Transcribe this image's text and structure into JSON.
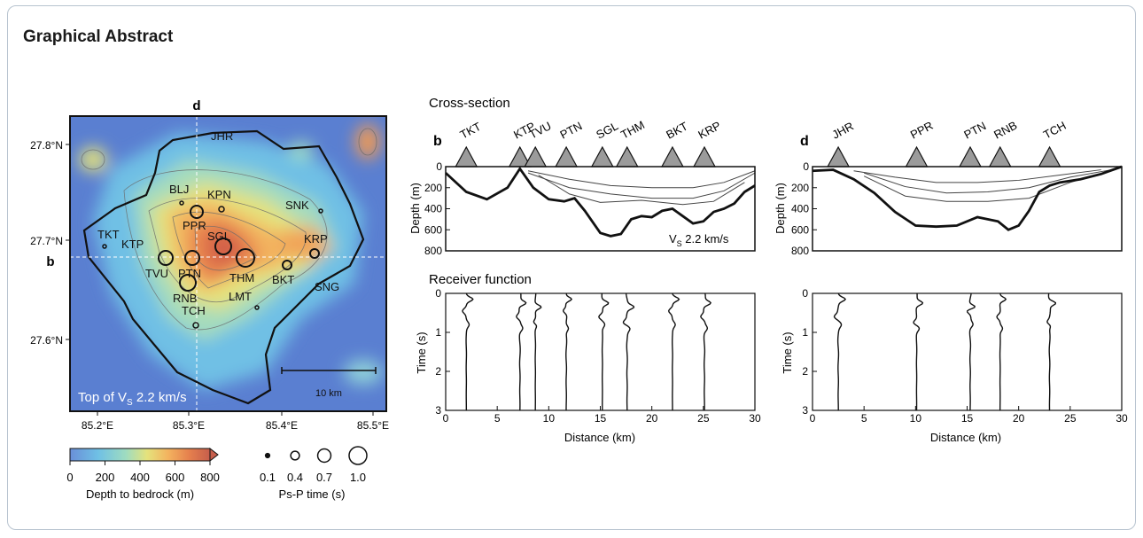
{
  "title": "Graphical Abstract",
  "map": {
    "panel_label": "d",
    "row_label": "b",
    "caption_main": "Top of V",
    "caption_sub": "S",
    "caption_rest": " 2.2 km/s",
    "scale_label": "10 km",
    "lat_labels": [
      "27.8°N",
      "27.7°N",
      "27.6°N"
    ],
    "lon_labels": [
      "85.2°E",
      "85.3°E",
      "85.4°E",
      "85.5°E"
    ],
    "stations": [
      "JHR",
      "BLJ",
      "KPN",
      "PPR",
      "SNK",
      "TKT",
      "KTP",
      "SGL",
      "KRP",
      "TVU",
      "PTN",
      "THM",
      "BKT",
      "SNG",
      "RNB",
      "LMT",
      "TCH"
    ]
  },
  "colorbar": {
    "ticks": [
      "0",
      "200",
      "400",
      "600",
      "800"
    ],
    "label": "Depth to bedrock (m)",
    "colors": [
      "#6a8fd8",
      "#6fbfe3",
      "#a9dcc0",
      "#e7e27a",
      "#f4b060",
      "#e9784a",
      "#c9503f"
    ]
  },
  "size_legend": {
    "values": [
      "0.1",
      "0.4",
      "0.7",
      "1.0"
    ],
    "label": "Ps-P time (s)"
  },
  "headings": {
    "cross_section": "Cross-section",
    "receiver_function": "Receiver function"
  },
  "cross_b": {
    "label": "b",
    "stations": [
      "TKT",
      "KTP",
      "TVU",
      "PTN",
      "SGL",
      "THM",
      "BKT",
      "KRP"
    ],
    "station_km": [
      2.0,
      7.2,
      8.7,
      11.7,
      15.2,
      17.6,
      22.0,
      25.1
    ],
    "ylabel": "Depth (m)",
    "yticks": [
      "0",
      "200",
      "400",
      "600",
      "800"
    ],
    "annot_main": "V",
    "annot_sub": "S",
    "annot_rest": " 2.2 km/s"
  },
  "cross_d": {
    "label": "d",
    "stations": [
      "JHR",
      "PPR",
      "PTN",
      "RNB",
      "TCH"
    ],
    "station_km": [
      2.5,
      10.1,
      15.3,
      18.2,
      23.0
    ],
    "ylabel": "Depth (m)",
    "yticks": [
      "0",
      "200",
      "400",
      "600",
      "800"
    ]
  },
  "rf": {
    "ylabel": "Time (s)",
    "yticks": [
      "0",
      "1",
      "2",
      "3"
    ],
    "xticks": [
      "0",
      "5",
      "10",
      "15",
      "20",
      "25",
      "30"
    ],
    "xlabel": "Distance (km)"
  }
}
